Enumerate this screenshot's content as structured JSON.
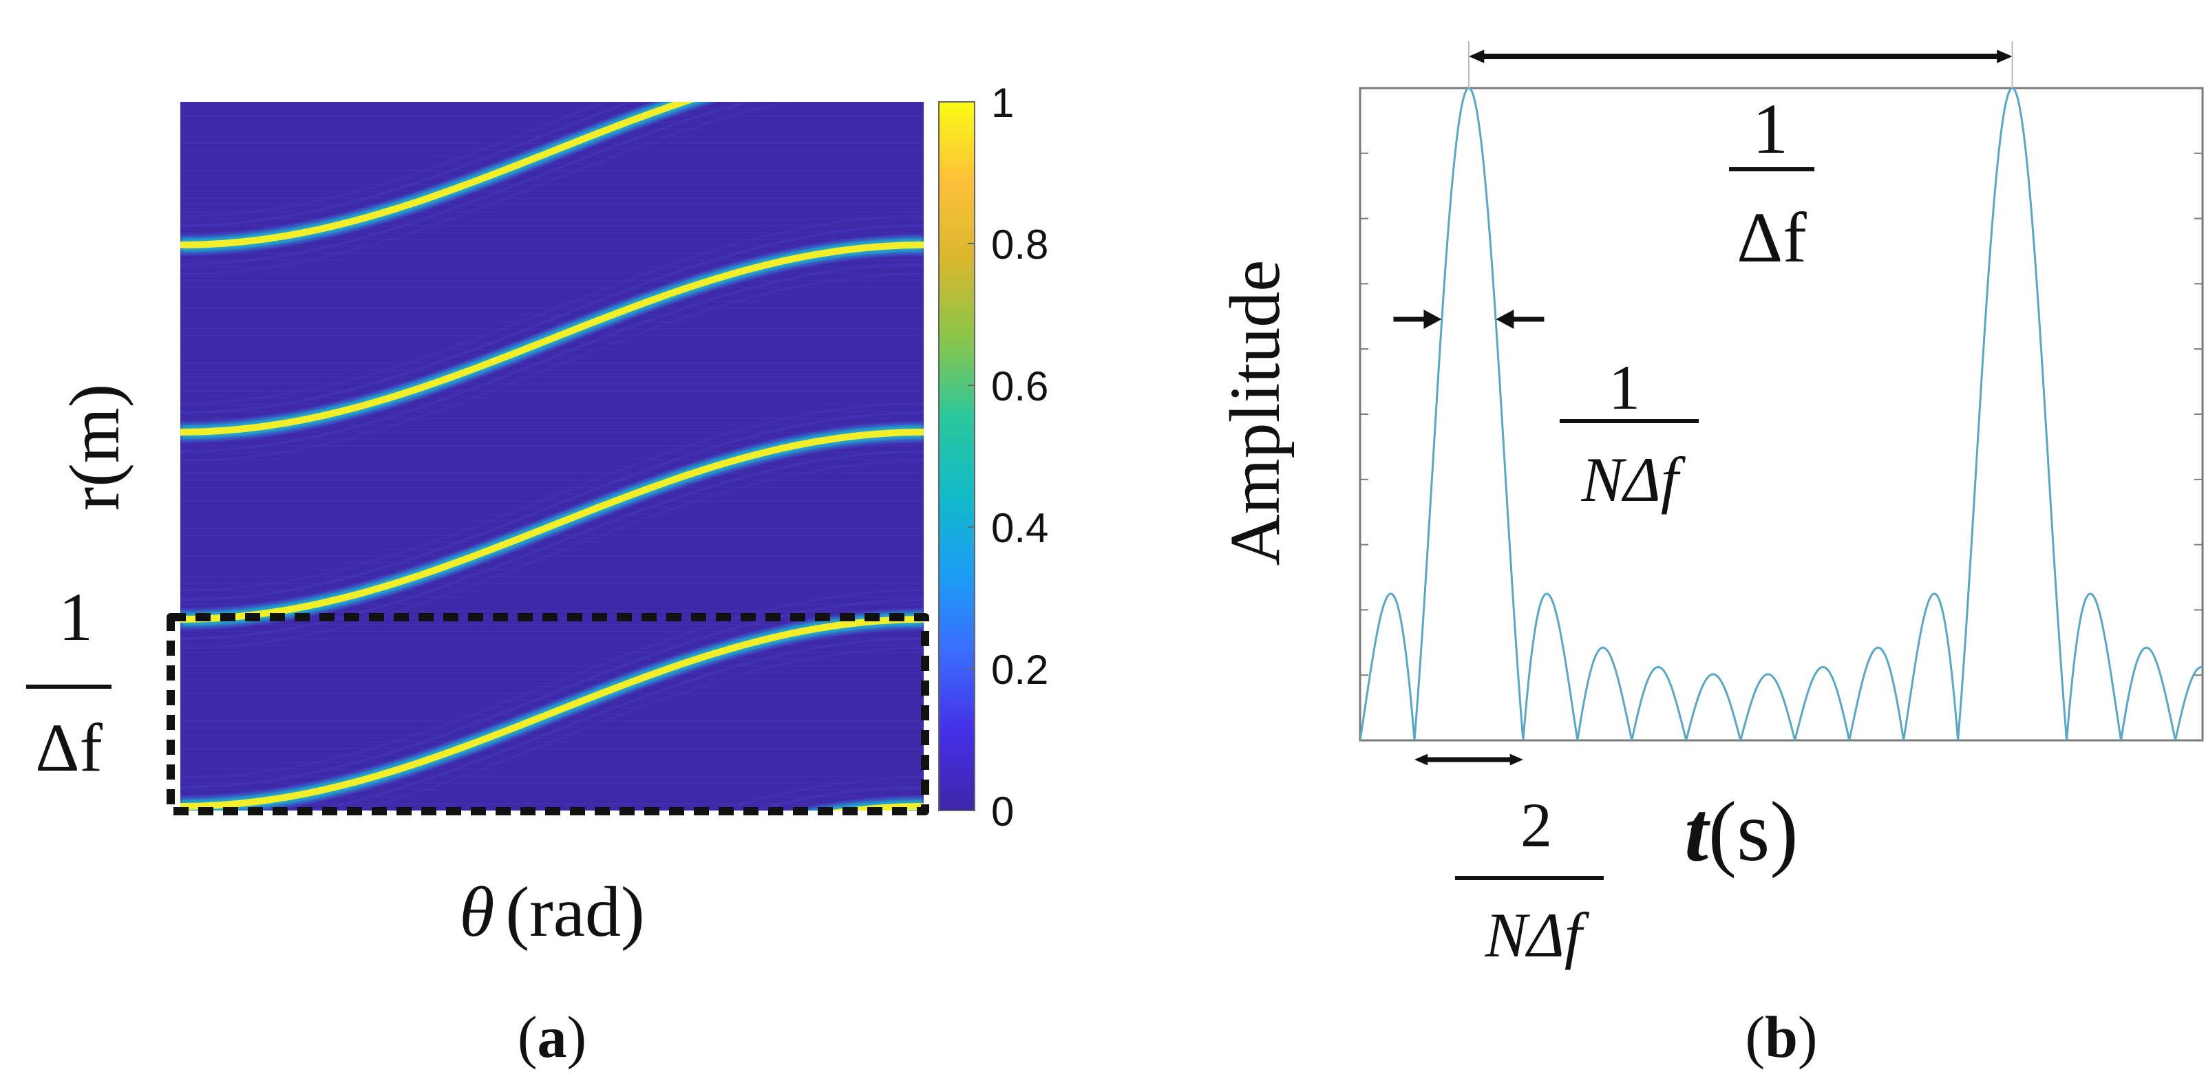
{
  "panels": [
    {
      "caption_letter": "a",
      "chart_data": {
        "type": "heatmap",
        "xlabel_symbol": "θ",
        "xlabel_unit": "(rad)",
        "ylabel": "r(m)",
        "colorbar": {
          "range": [
            0,
            1
          ],
          "ticks": [
            "1",
            "0.8",
            "0.6",
            "0.4",
            "0.2",
            "0"
          ],
          "colormap": [
            "#3e26a8",
            "#4530e6",
            "#3b6cfe",
            "#1c9df3",
            "#12bac8",
            "#2bc79b",
            "#8bc54a",
            "#d8b72e",
            "#fdc038",
            "#f9fb15"
          ]
        },
        "background_color": "#3e2aa8",
        "ridge_color": "#f2ee2a",
        "highlight_box": {
          "dashed": true,
          "color": "#111111"
        },
        "annotation": {
          "numerator": "1",
          "denominator": "Δf"
        }
      }
    },
    {
      "caption_letter": "b",
      "chart_data": {
        "type": "line",
        "series_function": "|sin(N·π·Δf·t) / sin(π·Δf·t)| normalized",
        "N": 10,
        "x_range_periods": [
          -0.2,
          1.35
        ],
        "main_lobe_centers_periods": [
          0,
          1
        ],
        "ylim": [
          0,
          1
        ],
        "xlabel_symbol": "t",
        "xlabel_unit": "(s)",
        "ylabel": "Amplitude",
        "line_color": "#5aa6c3",
        "annotations": [
          {
            "id": "period",
            "numerator": "1",
            "denominator": "Δf"
          },
          {
            "id": "mainlobe-width",
            "numerator": "1",
            "denominator": "NΔf"
          },
          {
            "id": "null-to-null",
            "numerator": "2",
            "denominator": "NΔf"
          }
        ]
      }
    }
  ]
}
